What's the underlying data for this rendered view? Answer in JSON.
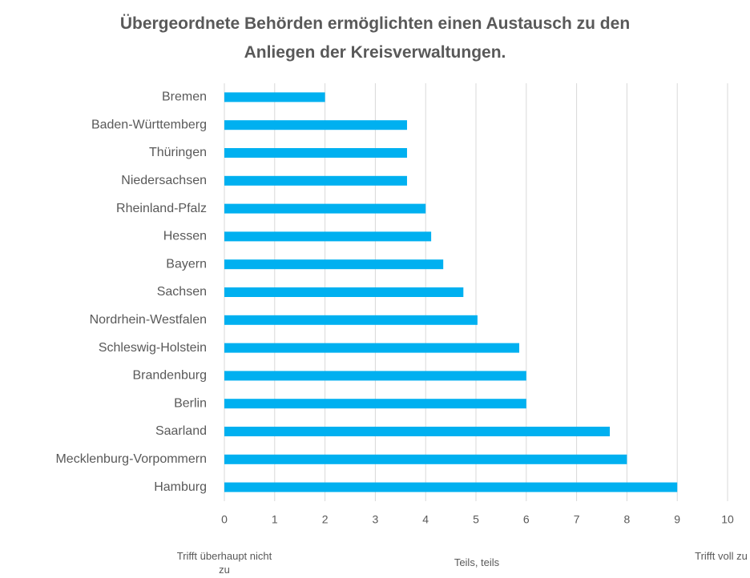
{
  "chart_data": {
    "type": "barh",
    "title": "Übergeordnete Behörden ermöglichten einen Austausch zu den Anliegen der Kreisverwaltungen.",
    "categories": [
      "Bremen",
      "Baden-Württemberg",
      "Thüringen",
      "Niedersachsen",
      "Rheinland-Pfalz",
      "Hessen",
      "Bayern",
      "Sachsen",
      "Nordrhein-Westfalen",
      "Schleswig-Holstein",
      "Brandenburg",
      "Berlin",
      "Saarland",
      "Mecklenburg-Vorpommern",
      "Hamburg"
    ],
    "values": [
      2,
      3.63,
      3.63,
      3.63,
      4,
      4.11,
      4.35,
      4.75,
      5.03,
      5.86,
      6,
      6,
      7.66,
      8,
      9
    ],
    "color": "#00b0f0",
    "xlim": [
      0,
      10
    ],
    "xticks": [
      0,
      1,
      2,
      3,
      4,
      5,
      6,
      7,
      8,
      9,
      10
    ],
    "grid": true,
    "annotations": [
      "Trifft überhaupt nicht zu",
      "Teils, teils",
      "Trifft voll zu"
    ]
  }
}
